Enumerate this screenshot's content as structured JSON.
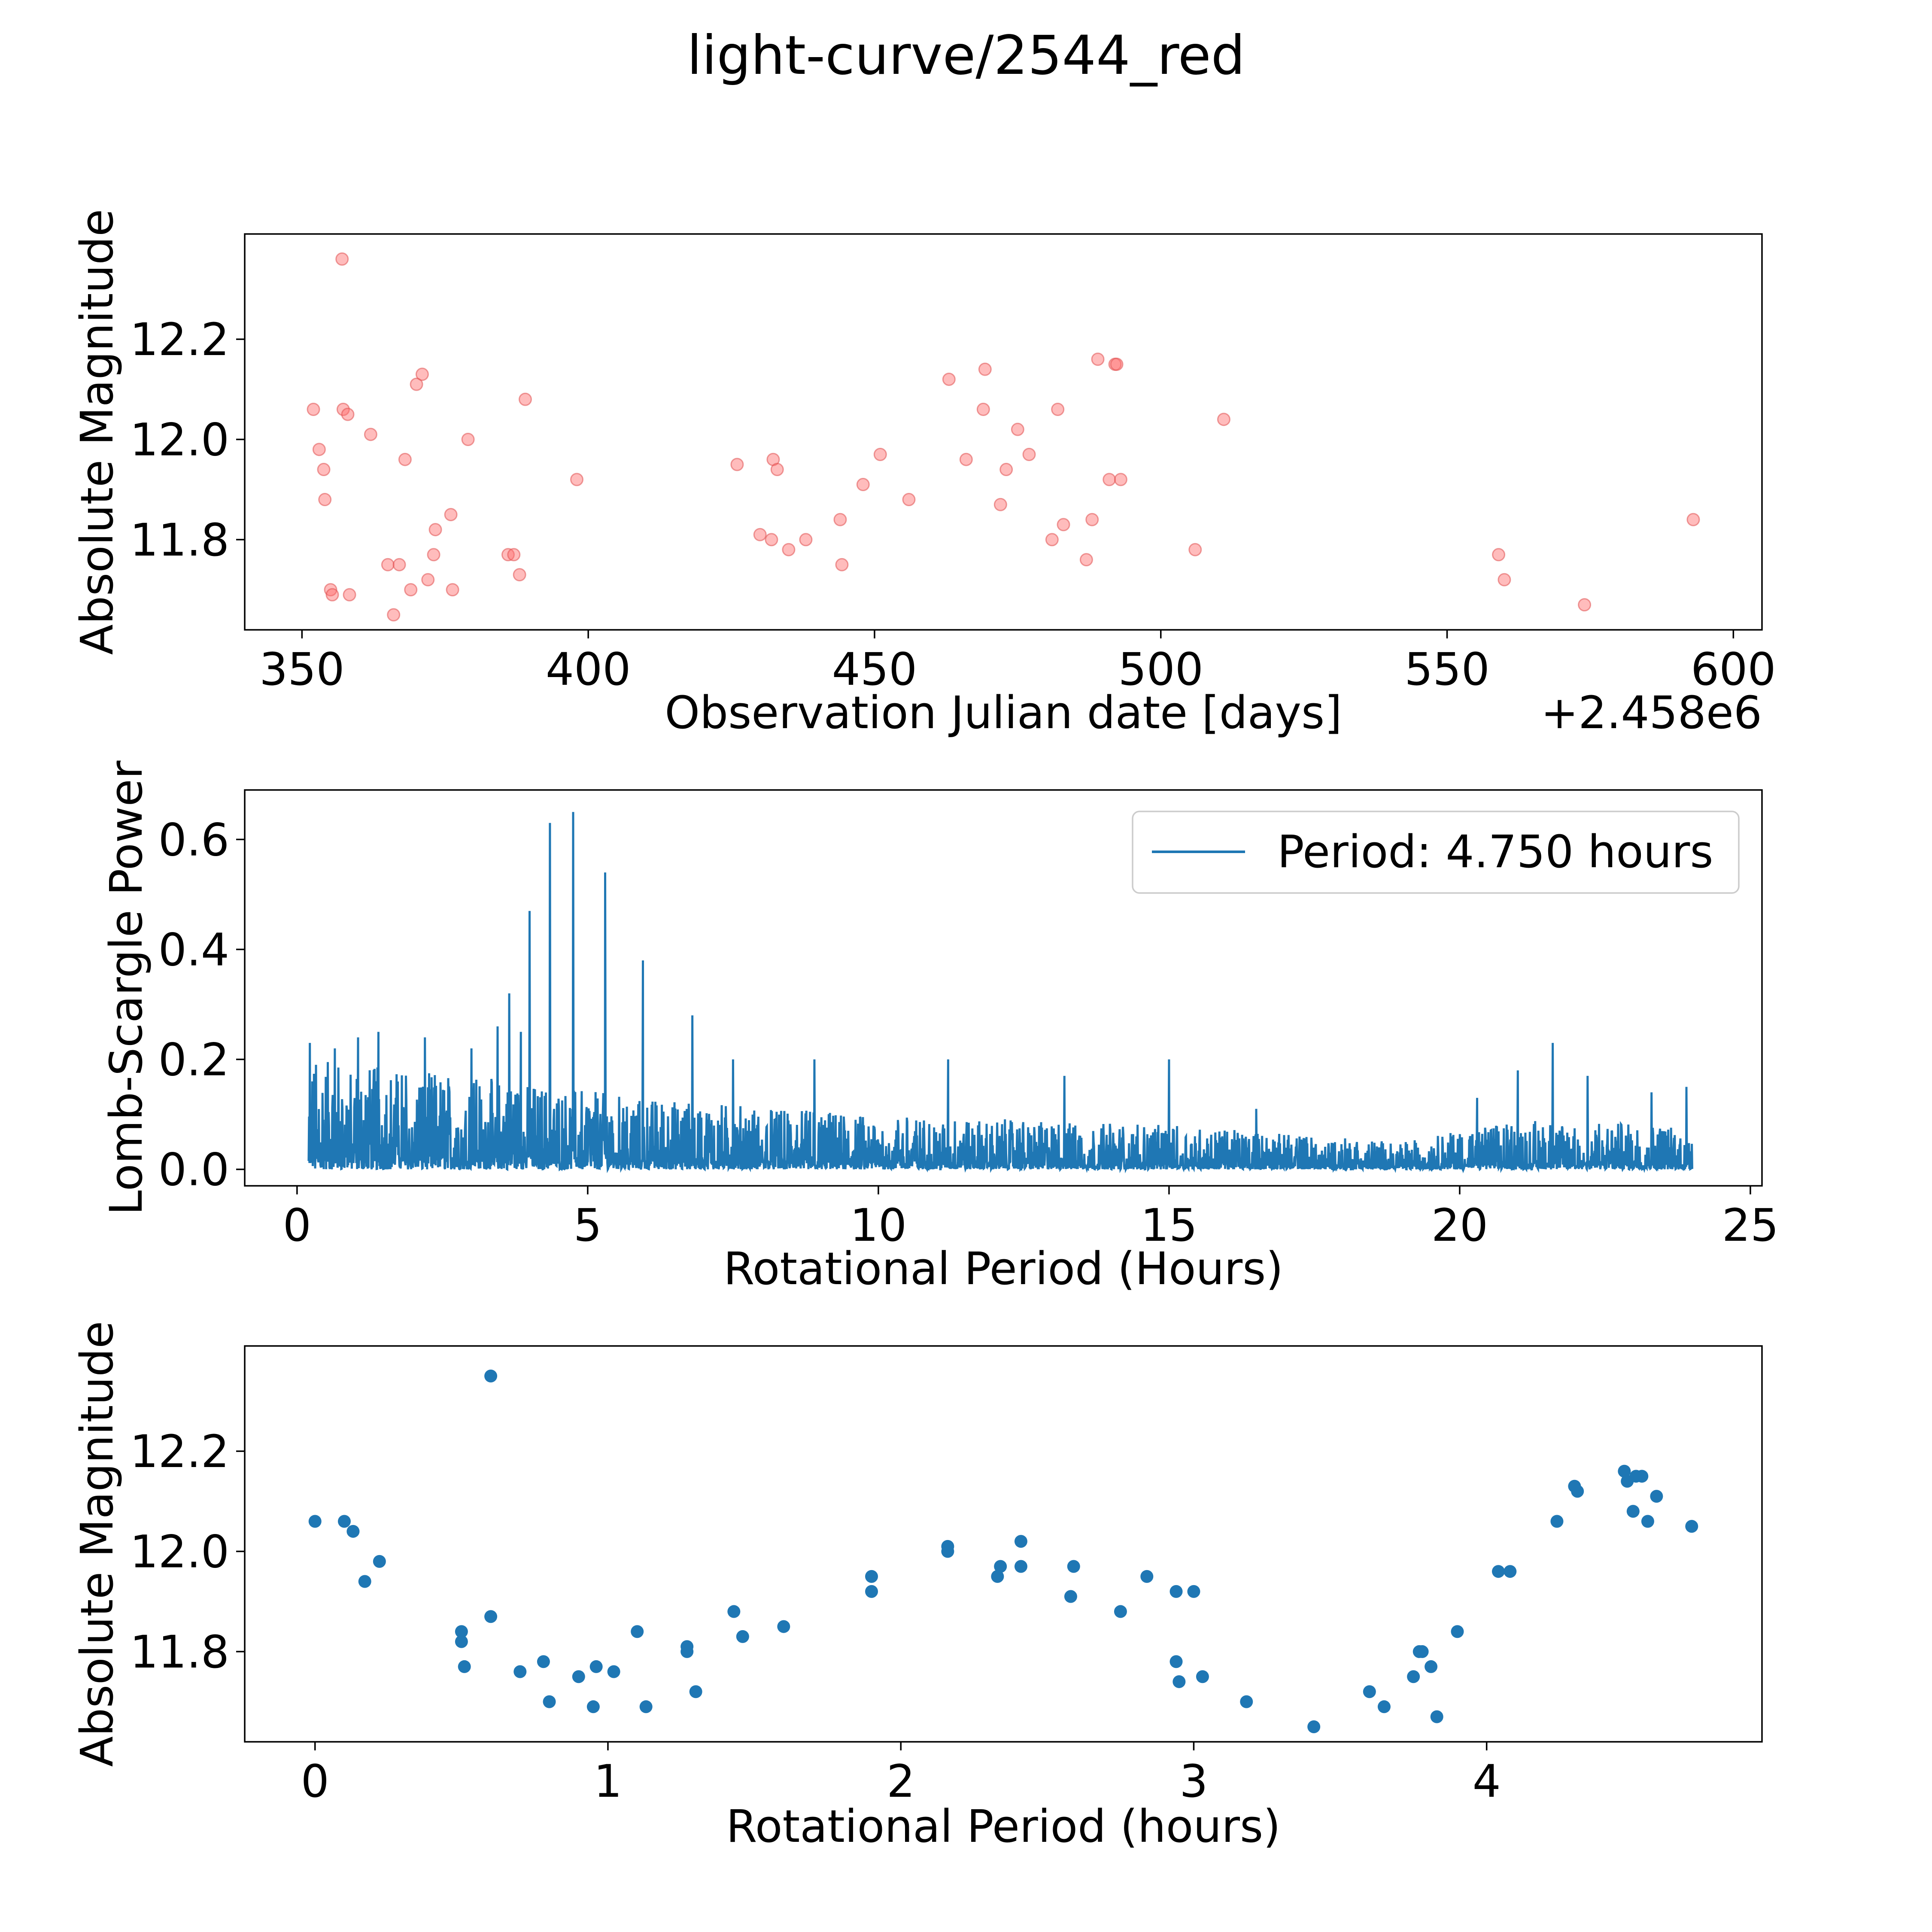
{
  "figure_title": "light-curve/2544_red",
  "colors": {
    "raw": "#ff6b6b",
    "raw_edge": "#e05050",
    "series": "#1f77b4",
    "axis": "#000000"
  },
  "chart_data": [
    {
      "id": "raw-light-curve",
      "type": "scatter",
      "xlabel": "Observation Julian date [days]",
      "ylabel": "Absolute Magnitude",
      "offset_label": "+2.458e6",
      "xlim": [
        340,
        605
      ],
      "ylim": [
        11.62,
        12.41
      ],
      "xticks": [
        350,
        400,
        450,
        500,
        550,
        600
      ],
      "xtick_labels": [
        "350",
        "400",
        "450",
        "500",
        "550",
        "600"
      ],
      "yticks": [
        11.8,
        12.0,
        12.2
      ],
      "ytick_labels": [
        "11.8",
        "12.0",
        "12.2"
      ],
      "points": [
        [
          352.0,
          12.06
        ],
        [
          353.0,
          11.98
        ],
        [
          353.8,
          11.94
        ],
        [
          354.0,
          11.88
        ],
        [
          355.0,
          11.7
        ],
        [
          355.3,
          11.69
        ],
        [
          357.0,
          12.36
        ],
        [
          357.2,
          12.06
        ],
        [
          358.0,
          12.05
        ],
        [
          358.3,
          11.69
        ],
        [
          362.0,
          12.01
        ],
        [
          365.0,
          11.75
        ],
        [
          366.0,
          11.65
        ],
        [
          367.0,
          11.75
        ],
        [
          368.0,
          11.96
        ],
        [
          369.0,
          11.7
        ],
        [
          370.0,
          12.11
        ],
        [
          371.0,
          12.13
        ],
        [
          372.0,
          11.72
        ],
        [
          373.0,
          11.77
        ],
        [
          373.3,
          11.82
        ],
        [
          376.0,
          11.85
        ],
        [
          376.3,
          11.7
        ],
        [
          379.0,
          12.0
        ],
        [
          386.0,
          11.77
        ],
        [
          387.0,
          11.77
        ],
        [
          388.0,
          11.73
        ],
        [
          389.0,
          12.08
        ],
        [
          398.0,
          11.92
        ],
        [
          426.0,
          11.95
        ],
        [
          430.0,
          11.81
        ],
        [
          432.0,
          11.8
        ],
        [
          432.3,
          11.96
        ],
        [
          433.0,
          11.94
        ],
        [
          435.0,
          11.78
        ],
        [
          438.0,
          11.8
        ],
        [
          444.0,
          11.84
        ],
        [
          444.3,
          11.75
        ],
        [
          448.0,
          11.91
        ],
        [
          451.0,
          11.97
        ],
        [
          456.0,
          11.88
        ],
        [
          463.0,
          12.12
        ],
        [
          466.0,
          11.96
        ],
        [
          469.0,
          12.06
        ],
        [
          469.3,
          12.14
        ],
        [
          472.0,
          11.87
        ],
        [
          473.0,
          11.94
        ],
        [
          475.0,
          12.02
        ],
        [
          477.0,
          11.97
        ],
        [
          481.0,
          11.8
        ],
        [
          482.0,
          12.06
        ],
        [
          483.0,
          11.83
        ],
        [
          487.0,
          11.76
        ],
        [
          488.0,
          11.84
        ],
        [
          489.0,
          12.16
        ],
        [
          491.0,
          11.92
        ],
        [
          492.0,
          12.15
        ],
        [
          492.3,
          12.15
        ],
        [
          493.0,
          11.92
        ],
        [
          506.0,
          11.78
        ],
        [
          511.0,
          12.04
        ],
        [
          559.0,
          11.77
        ],
        [
          560.0,
          11.72
        ],
        [
          574.0,
          11.67
        ],
        [
          593.0,
          11.84
        ]
      ]
    },
    {
      "id": "periodogram",
      "type": "line",
      "xlabel": "Rotational Period (Hours)",
      "ylabel": "Lomb-Scargle Power",
      "legend_label": "Period: 4.750 hours",
      "legend_position": "top-right",
      "xlim": [
        -0.9,
        25.2
      ],
      "ylim": [
        -0.03,
        0.69
      ],
      "xticks": [
        0,
        5,
        10,
        15,
        20,
        25
      ],
      "xtick_labels": [
        "0",
        "5",
        "10",
        "15",
        "20",
        "25"
      ],
      "yticks": [
        0.0,
        0.2,
        0.4,
        0.6
      ],
      "ytick_labels": [
        "0.0",
        "0.2",
        "0.4",
        "0.6"
      ],
      "period_range": [
        0.2,
        24.0
      ],
      "background_envelope": [
        [
          0.2,
          0.2
        ],
        [
          3.0,
          0.17
        ],
        [
          6.0,
          0.13
        ],
        [
          10.0,
          0.1
        ],
        [
          15.0,
          0.08
        ],
        [
          19.0,
          0.05
        ],
        [
          21.0,
          0.09
        ],
        [
          24.0,
          0.08
        ]
      ],
      "peaks": [
        [
          0.22,
          0.23
        ],
        [
          0.65,
          0.22
        ],
        [
          1.05,
          0.24
        ],
        [
          1.4,
          0.25
        ],
        [
          2.2,
          0.24
        ],
        [
          3.0,
          0.22
        ],
        [
          3.45,
          0.26
        ],
        [
          3.65,
          0.32
        ],
        [
          3.85,
          0.25
        ],
        [
          4.0,
          0.47
        ],
        [
          4.35,
          0.63
        ],
        [
          4.75,
          0.65
        ],
        [
          5.3,
          0.54
        ],
        [
          5.95,
          0.38
        ],
        [
          6.8,
          0.28
        ],
        [
          7.5,
          0.2
        ],
        [
          8.9,
          0.2
        ],
        [
          11.2,
          0.2
        ],
        [
          13.2,
          0.17
        ],
        [
          15.0,
          0.2
        ],
        [
          16.5,
          0.11
        ],
        [
          20.3,
          0.13
        ],
        [
          21.0,
          0.18
        ],
        [
          21.6,
          0.23
        ],
        [
          22.2,
          0.17
        ],
        [
          23.3,
          0.14
        ],
        [
          23.9,
          0.15
        ]
      ]
    },
    {
      "id": "folded-light-curve",
      "type": "scatter",
      "xlabel": "Rotational Period (hours)",
      "ylabel": "Absolute Magnitude",
      "xlim": [
        -0.24,
        4.94
      ],
      "ylim": [
        11.62,
        12.41
      ],
      "xticks": [
        0,
        1,
        2,
        3,
        4
      ],
      "xtick_labels": [
        "0",
        "1",
        "2",
        "3",
        "4"
      ],
      "yticks": [
        11.8,
        12.0,
        12.2
      ],
      "ytick_labels": [
        "11.8",
        "12.0",
        "12.2"
      ],
      "points": [
        [
          0.0,
          12.06
        ],
        [
          0.1,
          12.06
        ],
        [
          0.13,
          12.04
        ],
        [
          0.17,
          11.94
        ],
        [
          0.22,
          11.98
        ],
        [
          0.5,
          11.84
        ],
        [
          0.5,
          11.82
        ],
        [
          0.51,
          11.77
        ],
        [
          0.6,
          12.35
        ],
        [
          0.6,
          11.87
        ],
        [
          0.7,
          11.76
        ],
        [
          0.78,
          11.78
        ],
        [
          0.8,
          11.7
        ],
        [
          0.9,
          11.75
        ],
        [
          0.95,
          11.69
        ],
        [
          0.96,
          11.77
        ],
        [
          1.02,
          11.76
        ],
        [
          1.1,
          11.84
        ],
        [
          1.13,
          11.69
        ],
        [
          1.27,
          11.81
        ],
        [
          1.27,
          11.8
        ],
        [
          1.3,
          11.72
        ],
        [
          1.43,
          11.88
        ],
        [
          1.46,
          11.83
        ],
        [
          1.6,
          11.85
        ],
        [
          1.9,
          11.95
        ],
        [
          1.9,
          11.92
        ],
        [
          2.16,
          12.01
        ],
        [
          2.16,
          12.0
        ],
        [
          2.33,
          11.95
        ],
        [
          2.34,
          11.97
        ],
        [
          2.41,
          11.97
        ],
        [
          2.41,
          12.02
        ],
        [
          2.58,
          11.91
        ],
        [
          2.59,
          11.97
        ],
        [
          2.75,
          11.88
        ],
        [
          2.84,
          11.95
        ],
        [
          2.94,
          11.92
        ],
        [
          2.94,
          11.78
        ],
        [
          2.95,
          11.74
        ],
        [
          3.0,
          11.92
        ],
        [
          3.03,
          11.75
        ],
        [
          3.18,
          11.7
        ],
        [
          3.41,
          11.65
        ],
        [
          3.6,
          11.72
        ],
        [
          3.65,
          11.69
        ],
        [
          3.75,
          11.75
        ],
        [
          3.77,
          11.8
        ],
        [
          3.78,
          11.8
        ],
        [
          3.81,
          11.77
        ],
        [
          3.83,
          11.67
        ],
        [
          3.9,
          11.84
        ],
        [
          4.04,
          11.96
        ],
        [
          4.08,
          11.96
        ],
        [
          4.24,
          12.06
        ],
        [
          4.3,
          12.13
        ],
        [
          4.31,
          12.12
        ],
        [
          4.47,
          12.16
        ],
        [
          4.48,
          12.14
        ],
        [
          4.5,
          12.08
        ],
        [
          4.51,
          12.15
        ],
        [
          4.53,
          12.15
        ],
        [
          4.55,
          12.06
        ],
        [
          4.58,
          12.11
        ],
        [
          4.7,
          12.05
        ]
      ]
    }
  ]
}
